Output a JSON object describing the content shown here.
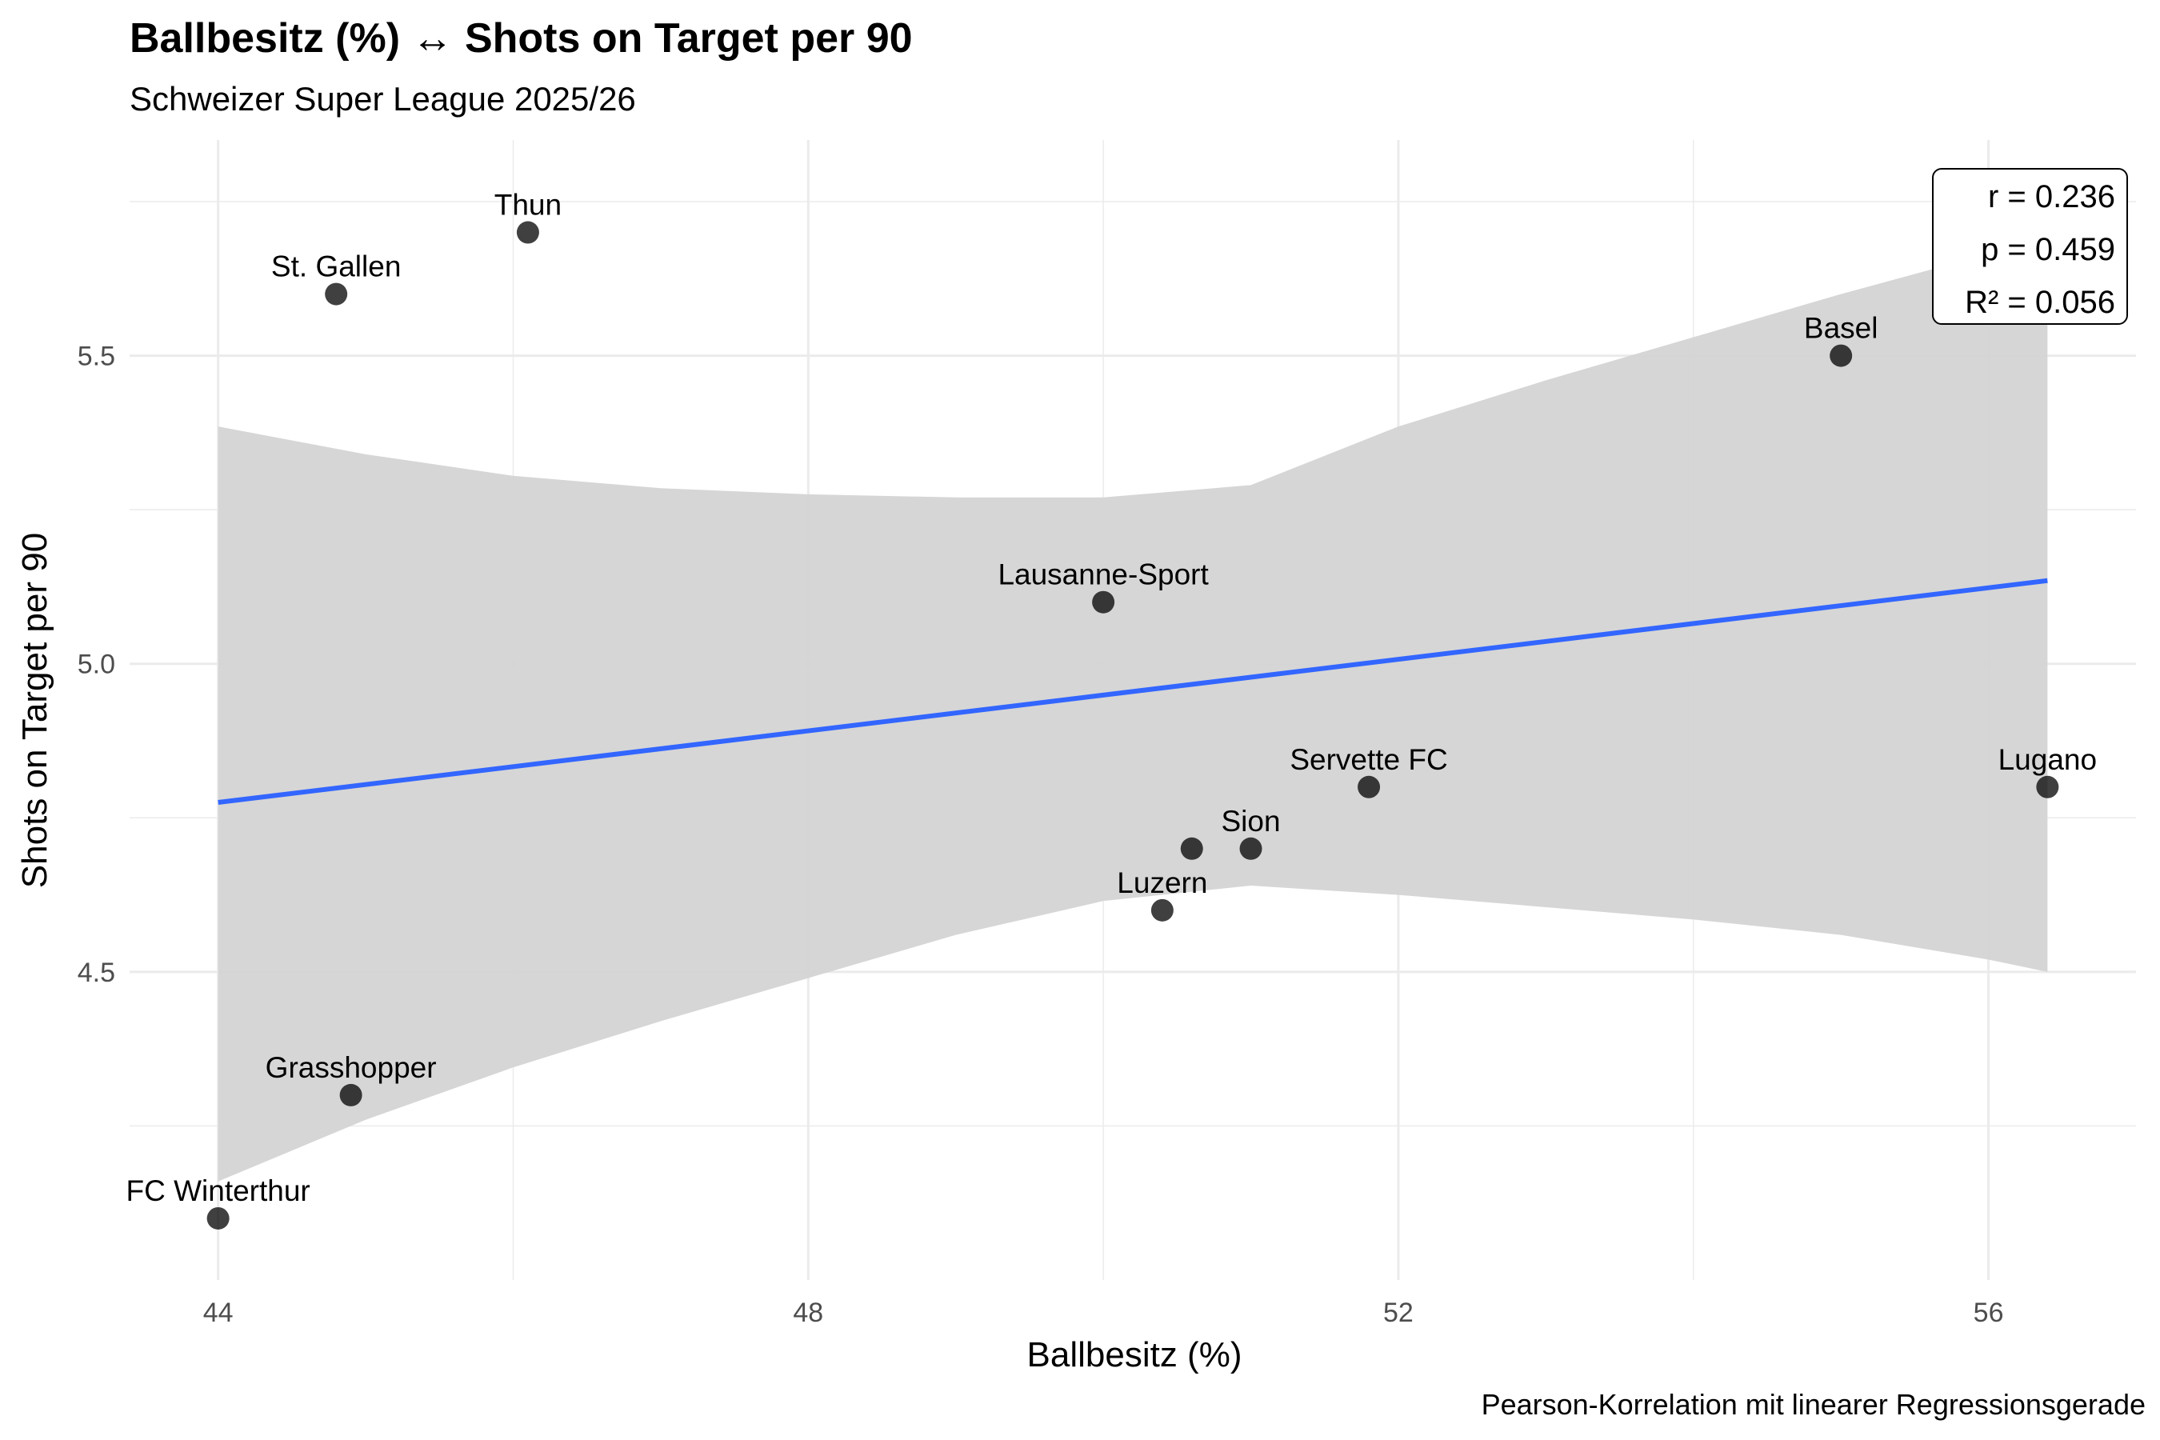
{
  "chart_data": {
    "type": "scatter",
    "title": "Ballbesitz (%) ↔ Shots on Target per 90",
    "subtitle": "Schweizer Super League 2025/26",
    "xlabel": "Ballbesitz (%)",
    "ylabel": "Shots on Target per 90",
    "caption": "Pearson-Korrelation mit linearer Regressionsgerade",
    "xlim": [
      43.4,
      57.0
    ],
    "ylim": [
      4.0,
      5.85
    ],
    "x_ticks": [
      44,
      48,
      52,
      56
    ],
    "y_ticks": [
      4.5,
      5.0,
      5.5
    ],
    "grid": true,
    "points": [
      {
        "label": "Thun",
        "x": 46.1,
        "y": 5.7
      },
      {
        "label": "St. Gallen",
        "x": 44.8,
        "y": 5.6
      },
      {
        "label": "Basel",
        "x": 55.0,
        "y": 5.5
      },
      {
        "label": "Lausanne-Sport",
        "x": 50.0,
        "y": 5.1
      },
      {
        "label": "Servette FC",
        "x": 51.8,
        "y": 4.8
      },
      {
        "label": "Lugano",
        "x": 56.4,
        "y": 4.8
      },
      {
        "label": "",
        "x": 50.6,
        "y": 4.7
      },
      {
        "label": "Sion",
        "x": 51.0,
        "y": 4.7
      },
      {
        "label": "Luzern",
        "x": 50.4,
        "y": 4.6
      },
      {
        "label": "Grasshopper",
        "x": 44.9,
        "y": 4.3
      },
      {
        "label": "FC Winterthur",
        "x": 44.0,
        "y": 4.1
      }
    ],
    "regression": {
      "x": [
        44.0,
        56.4
      ],
      "y": [
        4.775,
        5.135
      ]
    },
    "confidence_band": {
      "x": [
        44.0,
        45.0,
        46.0,
        47.0,
        48.0,
        49.0,
        50.0,
        51.0,
        52.0,
        53.0,
        54.0,
        55.0,
        56.0,
        56.4
      ],
      "upper": [
        5.385,
        5.34,
        5.305,
        5.285,
        5.275,
        5.27,
        5.27,
        5.29,
        5.385,
        5.46,
        5.53,
        5.6,
        5.665,
        5.695
      ],
      "lower": [
        4.16,
        4.26,
        4.345,
        4.42,
        4.49,
        4.56,
        4.615,
        4.64,
        4.625,
        4.605,
        4.585,
        4.56,
        4.52,
        4.5
      ]
    },
    "stats": {
      "r": "r = 0.236",
      "p": "p = 0.459",
      "r2": "R² = 0.056"
    },
    "colors": {
      "line": "#3366FF",
      "band": "#D4D4D4",
      "grid": "#EBEBEB",
      "point": "#000000"
    }
  }
}
